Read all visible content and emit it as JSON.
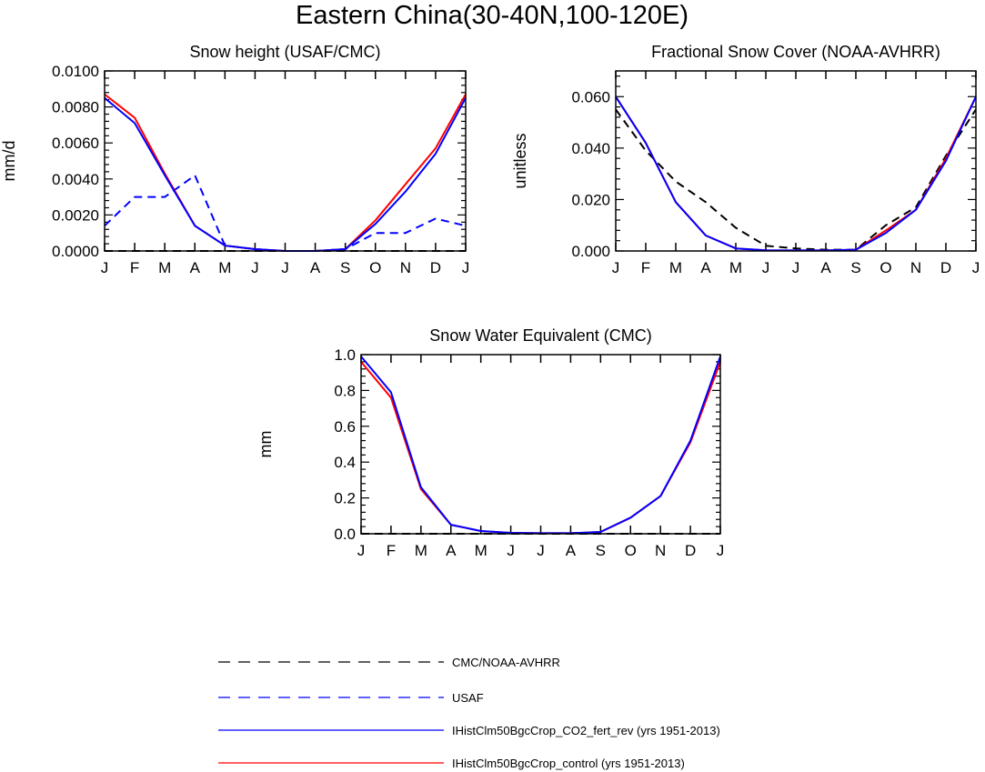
{
  "figure": {
    "title": "Eastern China(30-40N,100-120E)"
  },
  "colors": {
    "obs_black": "#000000",
    "usaf": "#0000ff",
    "co2_fert_rev": "#0000ff",
    "control": "#ff0000"
  },
  "legend": {
    "items": [
      {
        "label": "CMC/NOAA-AVHRR",
        "color": "#000000",
        "dash": "dashed"
      },
      {
        "label": "USAF",
        "color": "#0000ff",
        "dash": "dashed"
      },
      {
        "label": "IHistClm50BgcCrop_CO2_fert_rev (yrs 1951-2013)",
        "color": "#0000ff",
        "dash": "solid"
      },
      {
        "label": "IHistClm50BgcCrop_control (yrs 1951-2013)",
        "color": "#ff0000",
        "dash": "solid"
      }
    ]
  },
  "chart_data": [
    {
      "type": "line",
      "title": "Snow height (USAF/CMC)",
      "xlabel": "",
      "ylabel": "mm/d",
      "x": [
        "J",
        "F",
        "M",
        "A",
        "M",
        "J",
        "J",
        "A",
        "S",
        "O",
        "N",
        "D",
        "J"
      ],
      "ylim": [
        0,
        0.01
      ],
      "yticks": [
        "0.0000",
        "0.0020",
        "0.0040",
        "0.0060",
        "0.0080",
        "0.0100"
      ],
      "series": [
        {
          "name": "CMC/NOAA-AVHRR",
          "color": "#000000",
          "dash": "dashed",
          "values": [
            0,
            0,
            0,
            0,
            0,
            0,
            0,
            0,
            0,
            0,
            0,
            0,
            0
          ]
        },
        {
          "name": "USAF",
          "color": "#0000ff",
          "dash": "dashed",
          "values": [
            0.0014,
            0.003,
            0.003,
            0.0042,
            0.0003,
            0.0001,
            0,
            0,
            0.0001,
            0.001,
            0.001,
            0.0018,
            0.0014
          ]
        },
        {
          "name": "IHistClm50BgcCrop_control (yrs 1951-2013)",
          "color": "#ff0000",
          "dash": "solid",
          "values": [
            0.0087,
            0.0074,
            0.0043,
            0.0014,
            0.0003,
            0.0001,
            0,
            0,
            0.0001,
            0.0017,
            0.0037,
            0.0057,
            0.0087
          ]
        },
        {
          "name": "IHistClm50BgcCrop_CO2_fert_rev (yrs 1951-2013)",
          "color": "#0000ff",
          "dash": "solid",
          "values": [
            0.0085,
            0.0071,
            0.0042,
            0.0014,
            0.0003,
            0.0001,
            0,
            0,
            0.0001,
            0.0015,
            0.0033,
            0.0054,
            0.0085
          ]
        }
      ]
    },
    {
      "type": "line",
      "title": "Fractional Snow Cover (NOAA-AVHRR)",
      "xlabel": "",
      "ylabel": "unitless",
      "x": [
        "J",
        "F",
        "M",
        "A",
        "M",
        "J",
        "J",
        "A",
        "S",
        "O",
        "N",
        "D",
        "J"
      ],
      "ylim": [
        0,
        0.07
      ],
      "yticks": [
        "0.000",
        "0.020",
        "0.040",
        "0.060"
      ],
      "series": [
        {
          "name": "CMC/NOAA-AVHRR",
          "color": "#000000",
          "dash": "dashed",
          "values": [
            0.055,
            0.039,
            0.027,
            0.019,
            0.009,
            0.002,
            0.001,
            0.0005,
            0.0005,
            0.01,
            0.017,
            0.037,
            0.055
          ]
        },
        {
          "name": "IHistClm50BgcCrop_control (yrs 1951-2013)",
          "color": "#ff0000",
          "dash": "solid",
          "values": [
            0.06,
            0.042,
            0.019,
            0.006,
            0.001,
            0.0003,
            0.0002,
            0.0002,
            0.0005,
            0.008,
            0.016,
            0.036,
            0.06
          ]
        },
        {
          "name": "IHistClm50BgcCrop_CO2_fert_rev (yrs 1951-2013)",
          "color": "#0000ff",
          "dash": "solid",
          "values": [
            0.06,
            0.042,
            0.019,
            0.006,
            0.001,
            0.0003,
            0.0002,
            0.0002,
            0.0005,
            0.007,
            0.016,
            0.035,
            0.06
          ]
        }
      ]
    },
    {
      "type": "line",
      "title": "Snow Water Equivalent (CMC)",
      "xlabel": "",
      "ylabel": "mm",
      "x": [
        "J",
        "F",
        "M",
        "A",
        "M",
        "J",
        "J",
        "A",
        "S",
        "O",
        "N",
        "D",
        "J"
      ],
      "ylim": [
        0,
        1.0
      ],
      "yticks": [
        "0.0",
        "0.2",
        "0.4",
        "0.6",
        "0.8",
        "1.0"
      ],
      "series": [
        {
          "name": "CMC/NOAA-AVHRR",
          "color": "#000000",
          "dash": "dashed",
          "values": [
            0,
            0,
            0,
            0,
            0,
            0,
            0,
            0,
            0,
            0,
            0,
            0,
            0
          ]
        },
        {
          "name": "IHistClm50BgcCrop_control (yrs 1951-2013)",
          "color": "#ff0000",
          "dash": "solid",
          "values": [
            0.96,
            0.76,
            0.25,
            0.05,
            0.015,
            0.005,
            0.003,
            0.003,
            0.01,
            0.09,
            0.21,
            0.51,
            0.96
          ]
        },
        {
          "name": "IHistClm50BgcCrop_CO2_fert_rev (yrs 1951-2013)",
          "color": "#0000ff",
          "dash": "solid",
          "values": [
            0.99,
            0.79,
            0.26,
            0.05,
            0.015,
            0.005,
            0.003,
            0.003,
            0.01,
            0.09,
            0.21,
            0.52,
            0.99
          ]
        }
      ]
    }
  ]
}
